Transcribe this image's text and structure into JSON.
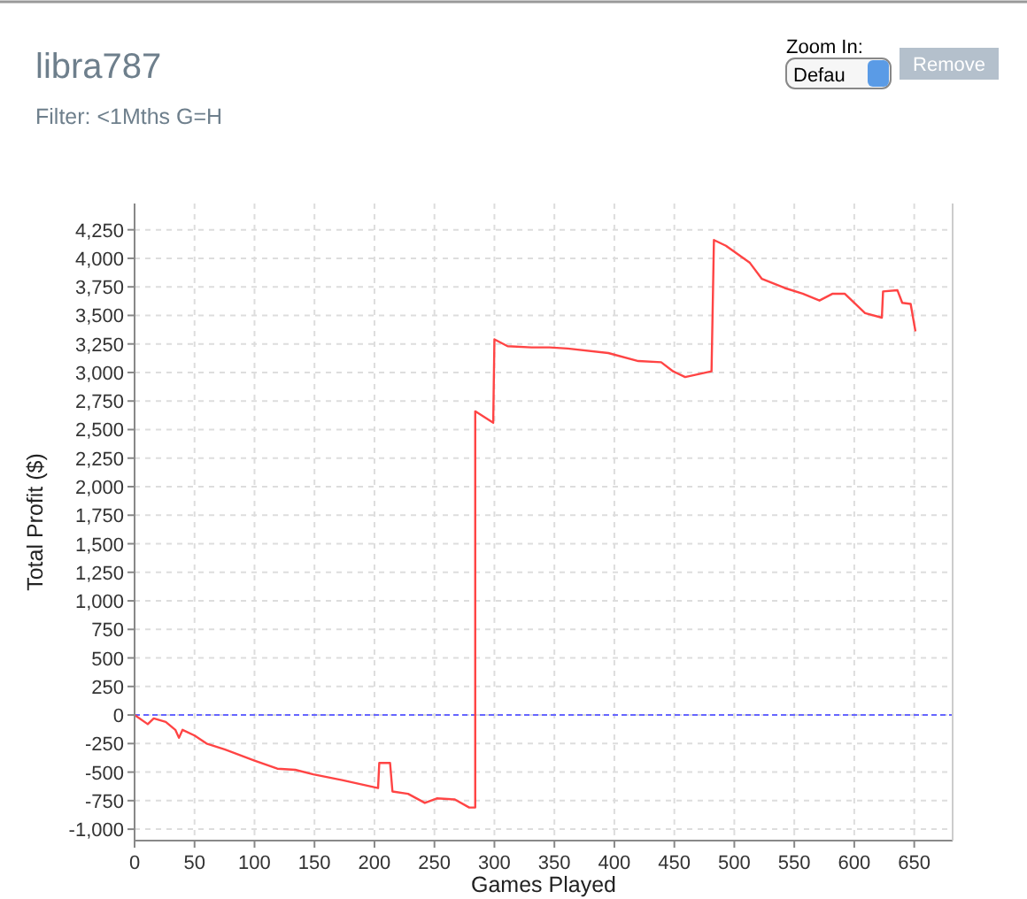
{
  "chart_data": {
    "type": "step",
    "title": "libra787",
    "subtitle": "Filter: <1Mths G=H",
    "xlabel": "Games Played",
    "ylabel": "Total Profit ($)",
    "annotations": [
      "Zoom In:",
      "Defau",
      "Remove"
    ],
    "xlim": [
      0,
      682
    ],
    "xticks": [
      0,
      50,
      100,
      150,
      200,
      250,
      300,
      350,
      400,
      450,
      500,
      550,
      600,
      650
    ],
    "ylim": [
      -1100,
      4480
    ],
    "yticks": [
      {
        "value": -1000,
        "label": "-1,000"
      },
      -750,
      -500,
      -250,
      0,
      250,
      500,
      750,
      {
        "value": 1000,
        "label": "1,000"
      },
      {
        "value": 1250,
        "label": "1,250"
      },
      {
        "value": 1500,
        "label": "1,500"
      },
      {
        "value": 1750,
        "label": "1,750"
      },
      {
        "value": 2000,
        "label": "2,000"
      },
      {
        "value": 2250,
        "label": "2,250"
      },
      {
        "value": 2500,
        "label": "2,500"
      },
      {
        "value": 2750,
        "label": "2,750"
      },
      {
        "value": 3000,
        "label": "3,000"
      },
      {
        "value": 3250,
        "label": "3,250"
      },
      {
        "value": 3500,
        "label": "3,500"
      },
      {
        "value": 3750,
        "label": "3,750"
      },
      {
        "value": 4000,
        "label": "4,000"
      },
      {
        "value": 4250,
        "label": "4,250"
      }
    ],
    "grid": true,
    "line_style": "solid",
    "ref_lines": [
      {
        "axis": "y",
        "value": 0,
        "color": "#6666ff",
        "line_style": "dashed"
      }
    ],
    "series": [
      {
        "color": "#ff4444",
        "x": [
          0,
          11,
          16,
          26,
          34,
          37,
          40,
          50,
          60,
          75,
          100,
          119,
          134,
          149,
          173,
          203,
          204,
          213,
          215,
          228,
          242,
          252,
          267,
          279,
          284,
          284,
          299,
          300,
          311,
          331,
          346,
          361,
          395,
          420,
          439,
          449,
          459,
          481,
          483,
          493,
          513,
          523,
          542,
          557,
          571,
          582,
          592,
          609,
          623,
          624,
          636,
          640,
          647,
          651
        ],
        "values": [
          0,
          -80,
          -30,
          -60,
          -130,
          -200,
          -130,
          -180,
          -250,
          -300,
          -400,
          -470,
          -480,
          -520,
          -570,
          -640,
          -420,
          -420,
          -670,
          -690,
          -770,
          -730,
          -740,
          -810,
          -810,
          2660,
          2560,
          3290,
          3230,
          3220,
          3220,
          3210,
          3170,
          3100,
          3090,
          3010,
          2960,
          3010,
          4160,
          4110,
          3960,
          3820,
          3740,
          3690,
          3630,
          3690,
          3690,
          3520,
          3480,
          3710,
          3720,
          3610,
          3600,
          3360
        ]
      }
    ]
  }
}
